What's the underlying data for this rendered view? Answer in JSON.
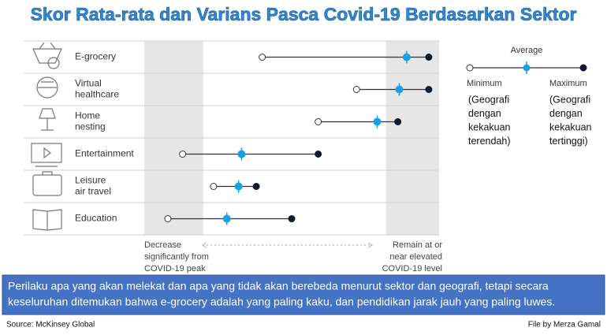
{
  "chart_data": {
    "type": "dumbbell",
    "title": "Skor Rata-rata dan Varians Pasca Covid-19 Berdasarkan Sektor",
    "categories": [
      [
        "E-grocery"
      ],
      [
        "Virtual",
        "healthcare"
      ],
      [
        "Home",
        "nesting"
      ],
      [
        "Entertainment"
      ],
      [
        "Leisure",
        "air travel"
      ],
      [
        "Education"
      ]
    ],
    "series": [
      {
        "name": "Minimum",
        "color": "#ffffff",
        "values": [
          40,
          72,
          59,
          13,
          23.5,
          8
        ]
      },
      {
        "name": "Average",
        "color": "#1ba1e2",
        "values": [
          89,
          86.5,
          79,
          33,
          32,
          28
        ]
      },
      {
        "name": "Maximum",
        "color": "#0d1b2a",
        "values": [
          96.5,
          96.5,
          86,
          59,
          38,
          50
        ]
      }
    ],
    "xlim": [
      0,
      100
    ],
    "shaded_ranges": [
      [
        0,
        20
      ],
      [
        82,
        100
      ]
    ],
    "x_axis_labels": {
      "left": [
        "Decrease",
        "significantly from",
        "COVID-19 peak"
      ],
      "right": [
        "Remain at or",
        "near elevated",
        "COVID-19 level"
      ]
    },
    "legend_notes": {
      "Minimum": [
        "(Geografi",
        "dengan",
        "kekakuan",
        "terendah)"
      ],
      "Maximum": [
        "(Geografi",
        "dengan",
        "kekakuan",
        "tertinggi)"
      ]
    },
    "caption": [
      "Perilaku apa yang akan melekat dan apa yang tidak akan berebeda menurut sektor dan geografi, tetapi secara",
      "keseluruhan ditemukan bahwa e-grocery adalah yang paling kaku, dan pendidikan jarak jauh yang paling luwes."
    ],
    "source": "Source: McKinsey Global",
    "credit": "File by Merza Gamal"
  }
}
